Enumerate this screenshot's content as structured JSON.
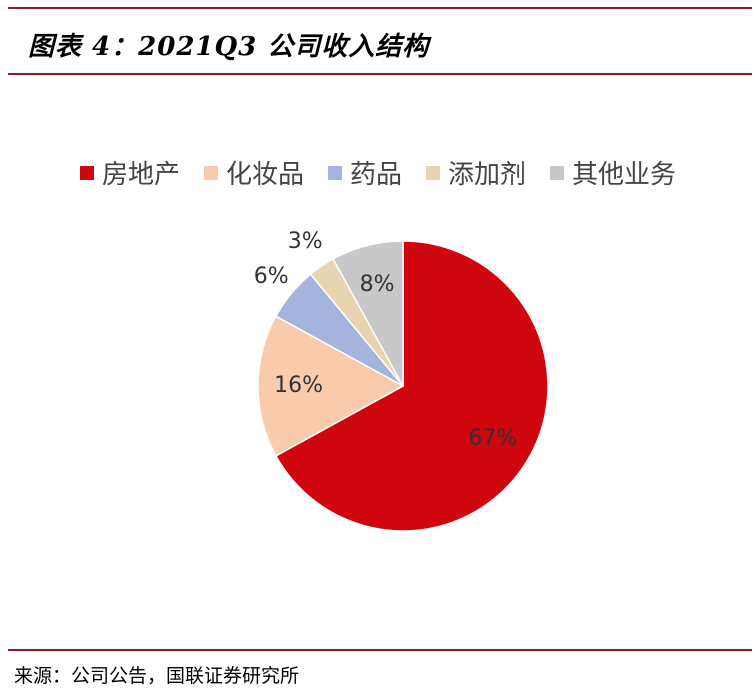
{
  "header": {
    "title": "图表 4：2021Q3 公司收入结构"
  },
  "chart_data": {
    "type": "pie",
    "categories": [
      "房地产",
      "化妆品",
      "药品",
      "添加剂",
      "其他业务"
    ],
    "values": [
      67,
      16,
      6,
      3,
      8
    ],
    "data_labels": [
      "67%",
      "16%",
      "6%",
      "3%",
      "8%"
    ],
    "colors": [
      "#d0060f",
      "#f8cbad",
      "#a4b4dc",
      "#e6d5b0",
      "#c8c8c8"
    ],
    "legend_position": "top",
    "label_color": "#333333"
  },
  "footer": {
    "source": "来源：公司公告，国联证券研究所"
  }
}
